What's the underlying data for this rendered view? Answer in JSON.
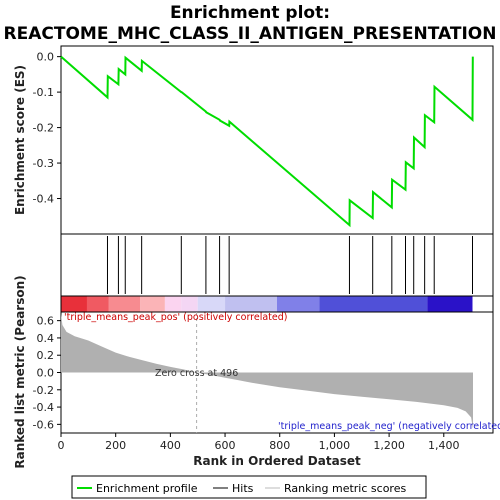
{
  "chart_data": {
    "type": "line",
    "title_line1": "Enrichment plot:",
    "title_line2": "REACTOME_MHC_CLASS_II_ANTIGEN_PRESENTATION",
    "top_panel": {
      "ylabel": "Enrichment score (ES)",
      "ylim": [
        -0.5,
        0.03
      ],
      "yticks": [
        0.0,
        -0.1,
        -0.2,
        -0.3,
        -0.4
      ],
      "ytick_labels": [
        "0.0",
        "-0.1",
        "-0.2",
        "-0.3",
        "-0.4"
      ],
      "series_color": "#00dd00",
      "es_profile": [
        [
          0,
          0.0
        ],
        [
          170,
          -0.115
        ],
        [
          171,
          -0.055
        ],
        [
          210,
          -0.078
        ],
        [
          211,
          -0.035
        ],
        [
          235,
          -0.05
        ],
        [
          236,
          -0.003
        ],
        [
          295,
          -0.04
        ],
        [
          296,
          -0.012
        ],
        [
          440,
          -0.1
        ],
        [
          441,
          -0.1
        ],
        [
          530,
          -0.155
        ],
        [
          531,
          -0.157
        ],
        [
          580,
          -0.178
        ],
        [
          581,
          -0.18
        ],
        [
          615,
          -0.195
        ],
        [
          616,
          -0.183
        ],
        [
          1055,
          -0.475
        ],
        [
          1056,
          -0.405
        ],
        [
          1140,
          -0.455
        ],
        [
          1141,
          -0.382
        ],
        [
          1210,
          -0.425
        ],
        [
          1211,
          -0.347
        ],
        [
          1260,
          -0.375
        ],
        [
          1261,
          -0.298
        ],
        [
          1290,
          -0.315
        ],
        [
          1291,
          -0.228
        ],
        [
          1330,
          -0.255
        ],
        [
          1331,
          -0.165
        ],
        [
          1365,
          -0.185
        ],
        [
          1366,
          -0.085
        ],
        [
          1505,
          -0.178
        ],
        [
          1506,
          0.0
        ]
      ]
    },
    "hits": [
      170,
      210,
      235,
      295,
      440,
      530,
      580,
      615,
      1055,
      1140,
      1210,
      1260,
      1290,
      1330,
      1365,
      1505
    ],
    "ranked_list": {
      "ylabel": "Ranked list metric (Pearson)",
      "ylim": [
        -0.7,
        0.7
      ],
      "yticks": [
        0.6,
        0.4,
        0.2,
        0.0,
        -0.2,
        -0.4,
        -0.6
      ],
      "ytick_labels": [
        "0.6",
        "0.4",
        "0.2",
        "0.0",
        "-0.2",
        "-0.4",
        "-0.6"
      ],
      "metric_profile": [
        [
          0,
          0.68
        ],
        [
          5,
          0.55
        ],
        [
          20,
          0.47
        ],
        [
          50,
          0.42
        ],
        [
          100,
          0.37
        ],
        [
          150,
          0.3
        ],
        [
          200,
          0.23
        ],
        [
          250,
          0.18
        ],
        [
          300,
          0.14
        ],
        [
          350,
          0.1
        ],
        [
          400,
          0.065
        ],
        [
          450,
          0.035
        ],
        [
          496,
          0.0
        ],
        [
          550,
          -0.03
        ],
        [
          600,
          -0.06
        ],
        [
          650,
          -0.09
        ],
        [
          700,
          -0.12
        ],
        [
          800,
          -0.17
        ],
        [
          900,
          -0.21
        ],
        [
          1000,
          -0.25
        ],
        [
          1100,
          -0.28
        ],
        [
          1200,
          -0.31
        ],
        [
          1300,
          -0.34
        ],
        [
          1400,
          -0.38
        ],
        [
          1450,
          -0.41
        ],
        [
          1480,
          -0.45
        ],
        [
          1500,
          -0.52
        ],
        [
          1507,
          -0.65
        ]
      ],
      "fill_color": "#b0b0b0",
      "annotation_pos": "'triple_means_peak_pos' (positively correlated)",
      "annotation_pos_color": "#cc0000",
      "annotation_neg": "'triple_means_peak_neg' (negatively correlated)",
      "annotation_neg_color": "#2222cc",
      "zero_cross_label": "Zero cross at 496",
      "zero_cross": 496
    },
    "color_bar": [
      [
        0,
        95,
        "#e8303a"
      ],
      [
        95,
        175,
        "#f05a62"
      ],
      [
        175,
        290,
        "#f78b90"
      ],
      [
        290,
        380,
        "#fbb4b7"
      ],
      [
        380,
        440,
        "#fbd4f0"
      ],
      [
        440,
        500,
        "#f4d6f4"
      ],
      [
        500,
        600,
        "#d8d8f8"
      ],
      [
        600,
        790,
        "#c0c0f0"
      ],
      [
        790,
        945,
        "#8080e8"
      ],
      [
        945,
        1340,
        "#5050d8"
      ],
      [
        1340,
        1505,
        "#2a12c8"
      ]
    ],
    "xlabel": "Rank in Ordered Dataset",
    "xlim": [
      0,
      1580
    ],
    "xticks": [
      0,
      200,
      400,
      600,
      800,
      1000,
      1200,
      1400
    ],
    "xtick_labels": [
      "0",
      "200",
      "400",
      "600",
      "800",
      "1,000",
      "1,200",
      "1,400"
    ],
    "legend": {
      "placement": "bottom",
      "items": [
        "Enrichment profile",
        "Hits",
        "Ranking metric scores"
      ]
    }
  }
}
